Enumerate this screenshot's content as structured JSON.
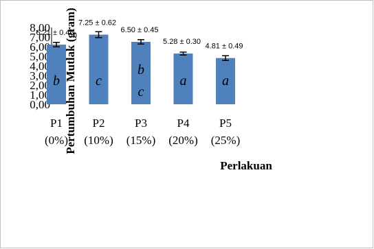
{
  "chart_data": {
    "type": "bar",
    "categories": [
      "P1",
      "P2",
      "P3",
      "P4",
      "P5"
    ],
    "category_sublabels": [
      "(0%)",
      "(10%)",
      "(15%)",
      "(20%)",
      "(25%)"
    ],
    "values": [
      6.21,
      7.25,
      6.5,
      5.28,
      4.81
    ],
    "errors": [
      0.46,
      0.62,
      0.45,
      0.3,
      0.49
    ],
    "value_labels": [
      "6.21 ± 0.46",
      "7.25 ± 0.62",
      "6.50 ± 0.45",
      "5.28 ± 0.30",
      "4.81 ± 0.49"
    ],
    "letters": [
      [
        "b"
      ],
      [
        "c"
      ],
      [
        "b",
        "c"
      ],
      [
        "a"
      ],
      [
        "a"
      ]
    ],
    "ylabel": "Pertumbuhan Mutlak (gram)",
    "xlabel": "Perlakuan",
    "yticks": [
      "0,00",
      "1,00",
      "2,00",
      "3,00",
      "4,00",
      "5,00",
      "6,00",
      "7,00",
      "8,00"
    ],
    "ylim": [
      0,
      8
    ],
    "bar_color": "#4f81bd",
    "grid": false,
    "legend": "none"
  }
}
